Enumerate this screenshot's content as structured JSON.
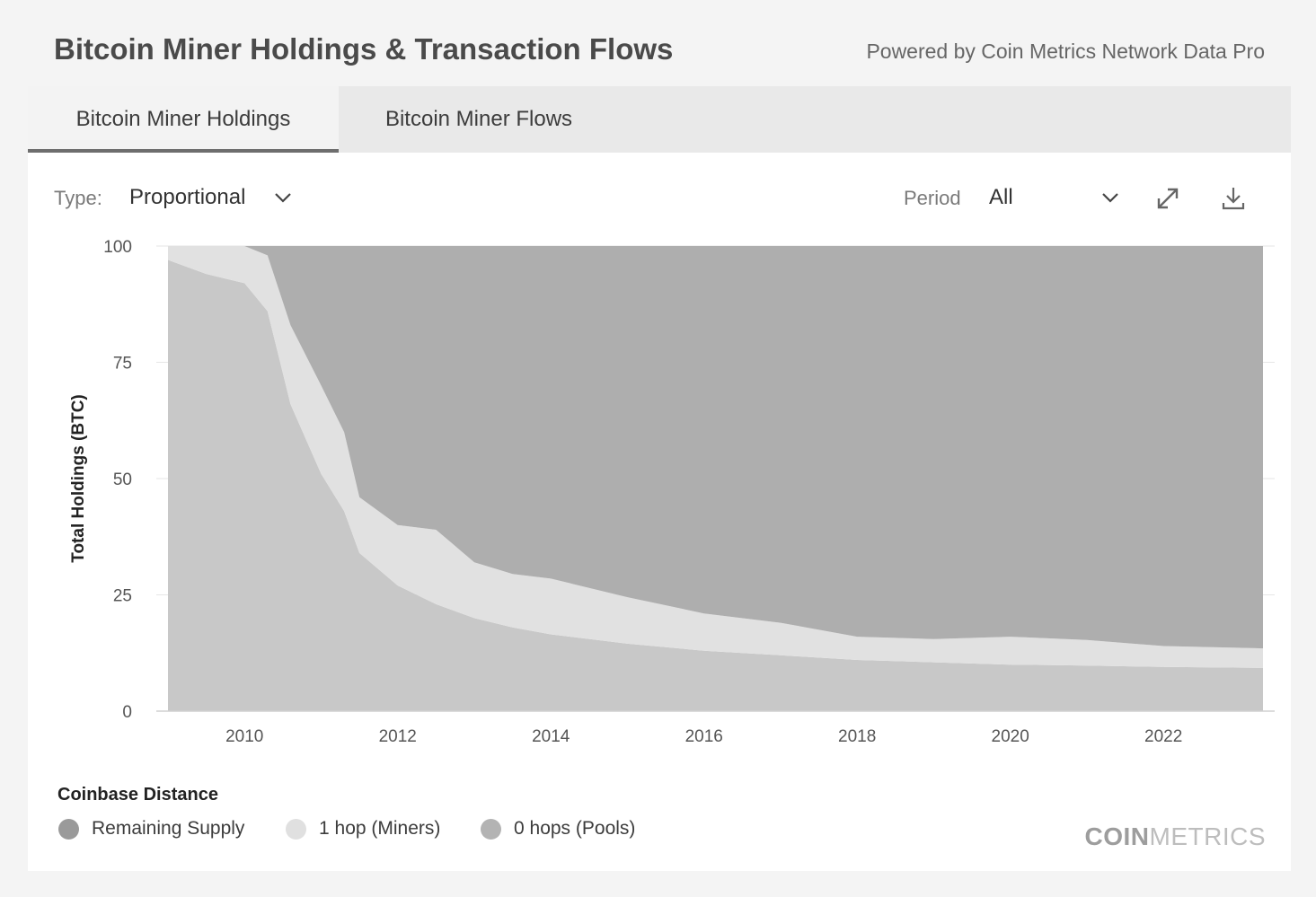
{
  "header": {
    "title": "Bitcoin Miner Holdings & Transaction Flows",
    "powered_by": "Powered by Coin Metrics Network Data Pro"
  },
  "tabs": [
    {
      "label": "Bitcoin Miner Holdings",
      "active": true
    },
    {
      "label": "Bitcoin Miner Flows",
      "active": false
    }
  ],
  "controls": {
    "type_label": "Type:",
    "type_value": "Proportional",
    "period_label": "Period",
    "period_value": "All",
    "expand_icon": "expand-icon",
    "download_icon": "download-icon"
  },
  "chart_data": {
    "type": "area",
    "stacked": true,
    "ylabel": "Total Holdings (BTC)",
    "ylim": [
      0,
      100
    ],
    "yticks": [
      0,
      25,
      50,
      75,
      100
    ],
    "xlim": [
      2009.0,
      2023.3
    ],
    "xticks": [
      "2010",
      "2012",
      "2014",
      "2016",
      "2018",
      "2020",
      "2022"
    ],
    "grid": true,
    "x": [
      2009.0,
      2009.5,
      2010.0,
      2010.3,
      2010.6,
      2011.0,
      2011.3,
      2011.5,
      2012.0,
      2012.5,
      2013.0,
      2013.5,
      2014.0,
      2015.0,
      2016.0,
      2017.0,
      2018.0,
      2019.0,
      2020.0,
      2021.0,
      2022.0,
      2023.3
    ],
    "series": [
      {
        "name": "0 hops (Pools)",
        "color": "#c8c8c8",
        "values": [
          97,
          94,
          92,
          86,
          66,
          51,
          43,
          34,
          27,
          23,
          20,
          18,
          16.5,
          14.5,
          13,
          12,
          11,
          10.5,
          10,
          9.8,
          9.5,
          9.3
        ]
      },
      {
        "name": "1 hop (Miners)",
        "color": "#e1e1e1",
        "values": [
          3,
          6,
          8,
          12,
          17,
          19,
          17,
          12,
          13,
          16,
          12,
          11.5,
          12,
          10,
          8,
          7,
          5,
          5,
          6,
          5.5,
          4.5,
          4.2
        ]
      },
      {
        "name": "Remaining Supply",
        "color": "#aeaeae",
        "values": [
          0,
          0,
          0,
          2,
          17,
          30,
          40,
          54,
          60,
          61,
          68,
          70.5,
          71.5,
          75.5,
          79,
          81,
          84,
          84.5,
          84,
          84.7,
          86,
          86.5
        ]
      }
    ],
    "legend": {
      "title": "Coinbase Distance",
      "placement": "bottom-left"
    }
  },
  "legend": {
    "title": "Coinbase Distance",
    "items": [
      {
        "label": "Remaining Supply",
        "color": "#9a9a9a"
      },
      {
        "label": "1 hop (Miners)",
        "color": "#e0e0e0"
      },
      {
        "label": "0 hops (Pools)",
        "color": "#b3b3b3"
      }
    ]
  },
  "branding": {
    "logo_bold": "COIN",
    "logo_thin": "METRICS"
  }
}
